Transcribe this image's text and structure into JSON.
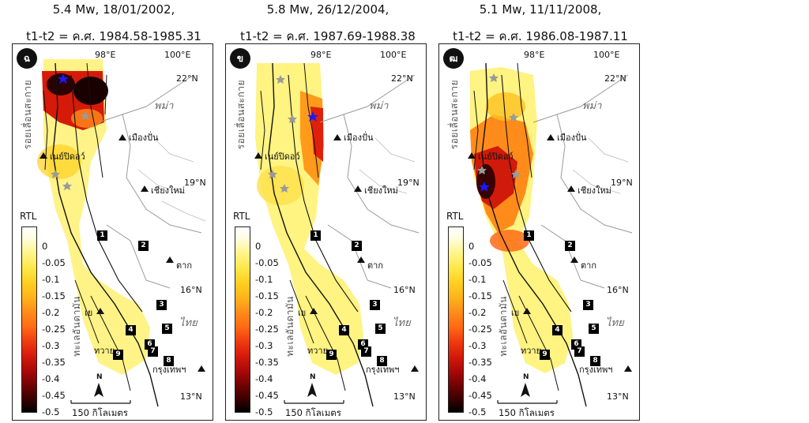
{
  "panels": [
    {
      "title_line1": "5.4 Mw, 18/01/2002,",
      "title_line2": "t1-t2 = ค.ศ. 1984.58-1985.31",
      "badge": "ฉ",
      "star_color": "#1a1aff"
    },
    {
      "title_line1": "5.8 Mw, 26/12/2004,",
      "title_line2": "t1-t2 = ค.ศ. 1987.69-1988.38",
      "badge": "ข",
      "star_color": "#1a1aff"
    },
    {
      "title_line1": "5.1 Mw, 11/11/2008,",
      "title_line2": "t1-t2 = ค.ศ. 1986.08-1987.11",
      "badge": "ฒ",
      "star_color": "#1a1aff"
    }
  ],
  "labels": {
    "lon98": "98°E",
    "lon100": "100°E",
    "lat22": "22°N",
    "lat19": "19°N",
    "lat16": "16°N",
    "lat13": "13°N",
    "myanmar": "พม่า",
    "thailand": "ไทย",
    "fault_sagaing": "รอยเลื่อนสะกาย",
    "andaman": "ทะเลอันดามัน",
    "city_mongpan": "เมืองปั่น",
    "city_naypyidaw": "เนย์ปิดอว์",
    "city_chiangmai": "เชียงใหม่",
    "city_tak": "ตาก",
    "city_ye": "เย",
    "city_dawei": "ทวาย",
    "city_bangkok": "กรุงเทพฯ",
    "rtl": "RTL",
    "scale": "150 กิโลเมตร",
    "north": "N"
  },
  "colorbar_ticks": [
    "0",
    "-0.05",
    "-0.1",
    "-0.15",
    "-0.2",
    "-0.25",
    "-0.3",
    "-0.35",
    "-0.4",
    "-0.45",
    "-0.5"
  ],
  "site_numbers": [
    "1",
    "2",
    "3",
    "4",
    "5",
    "6",
    "7",
    "8",
    "9"
  ],
  "colors": {
    "fault_line": "#111111",
    "border_line": "#9a9a9a",
    "star_gray": "#9a9a9a"
  }
}
